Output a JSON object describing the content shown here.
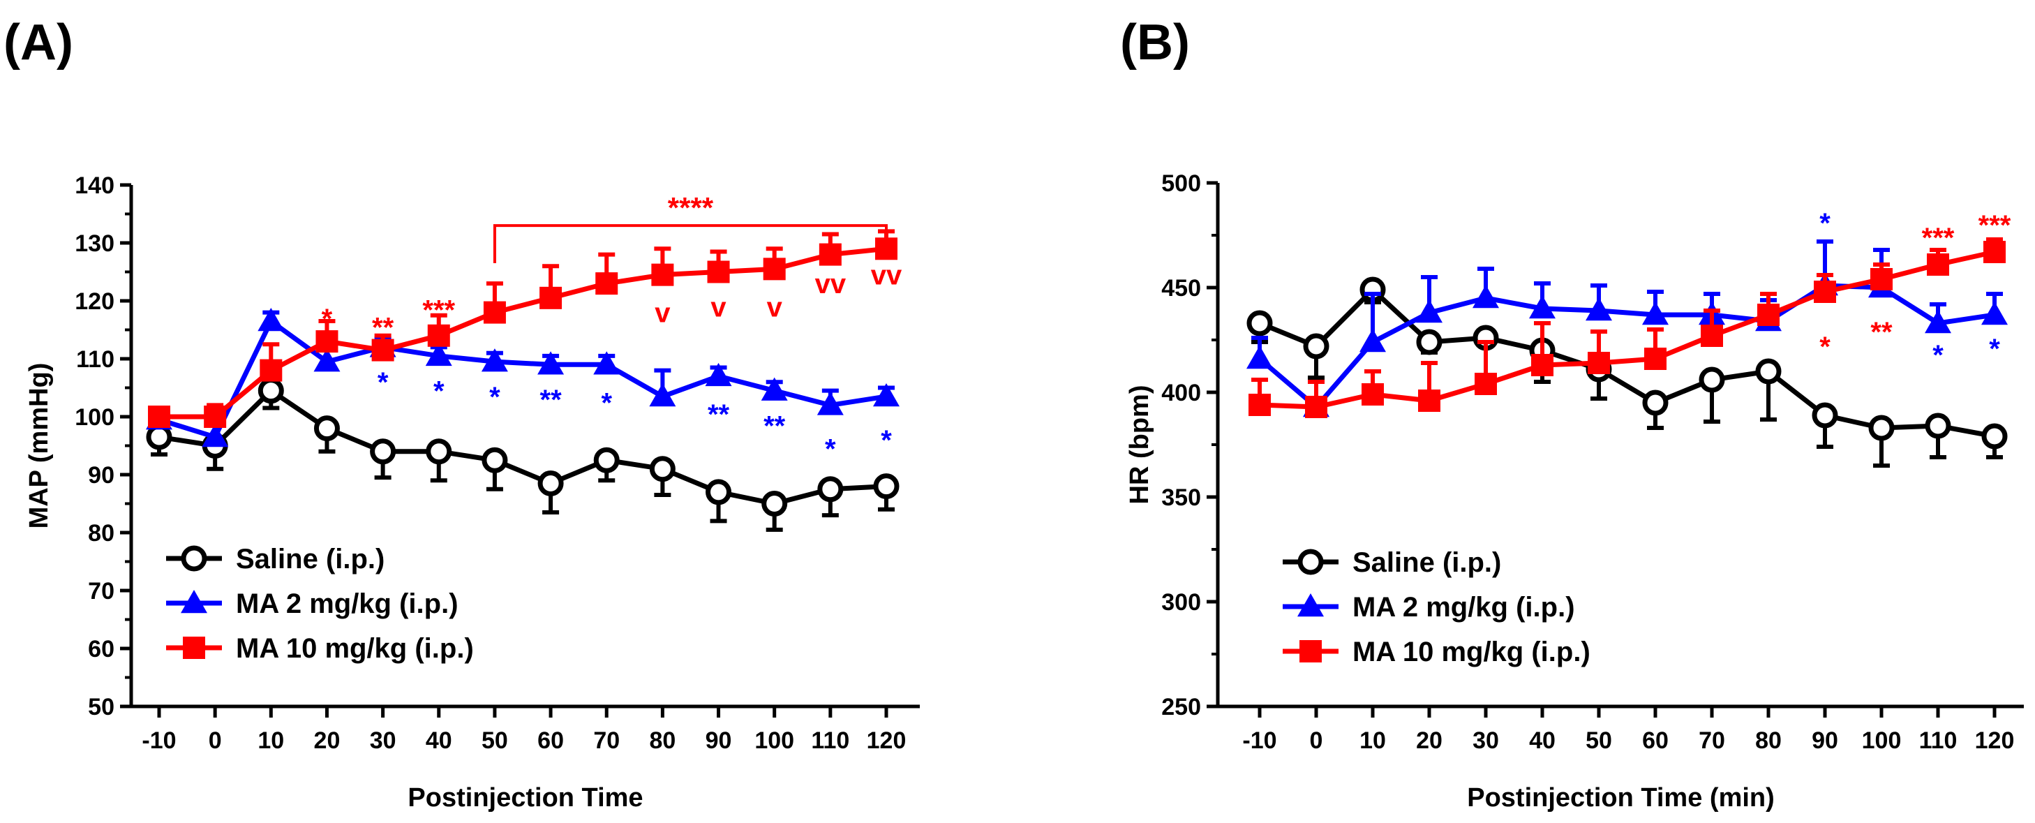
{
  "colors": {
    "saline": "#000000",
    "ma2": "#0000ff",
    "ma10": "#ff0000"
  },
  "chart_data": [
    {
      "type": "line",
      "panel_label": "(A)",
      "xlabel": "Postinjection Time",
      "ylabel": "MAP (mmHg)",
      "x": [
        -10,
        0,
        10,
        20,
        30,
        40,
        50,
        60,
        70,
        80,
        90,
        100,
        110,
        120
      ],
      "x_tick_labels": [
        "-10",
        "0",
        "10",
        "20",
        "30",
        "40",
        "50",
        "60",
        "70",
        "80",
        "90",
        "100",
        "110",
        "120"
      ],
      "ylim": [
        50,
        140
      ],
      "y_ticks": [
        50,
        60,
        70,
        80,
        90,
        100,
        110,
        120,
        130,
        140
      ],
      "y_tick_labels": [
        "50",
        "60",
        "70",
        "80",
        "90",
        "100",
        "110",
        "120",
        "130",
        "140"
      ],
      "legend_position": "bottom-left",
      "series": [
        {
          "key": "saline",
          "name": "Saline (i.p.)",
          "marker": "open-circle",
          "values": [
            96.5,
            95,
            104.5,
            98,
            94,
            94,
            92.5,
            88.5,
            92.5,
            91,
            87,
            85,
            87.5,
            88
          ],
          "errors": [
            3,
            4,
            3,
            4,
            4.5,
            5,
            5,
            5,
            3.5,
            4.5,
            5,
            4.5,
            4.5,
            4
          ]
        },
        {
          "key": "ma2",
          "name": "MA 2 mg/kg (i.p.)",
          "marker": "filled-triangle",
          "values": [
            99.5,
            96.5,
            116.5,
            109.5,
            112,
            110.5,
            109.5,
            109,
            109,
            103.5,
            107,
            104.5,
            102,
            103.5
          ],
          "errors": [
            1.5,
            2,
            1.5,
            2.5,
            1.5,
            1.5,
            1.5,
            1.5,
            1.5,
            4.5,
            1.5,
            1.5,
            2.5,
            1.5
          ]
        },
        {
          "key": "ma10",
          "name": "MA 10 mg/kg (i.p.)",
          "marker": "filled-square",
          "values": [
            100,
            100,
            108,
            113,
            111.5,
            114,
            118,
            120.5,
            123,
            124.5,
            125,
            125.5,
            128,
            129
          ],
          "errors": [
            1.5,
            2,
            4.5,
            3.5,
            2.5,
            3.5,
            5,
            5.5,
            5,
            4.5,
            3.5,
            3.5,
            3.5,
            3
          ]
        }
      ],
      "annotations": [
        {
          "text": "*",
          "x": 20,
          "y": 117,
          "series": "ma10"
        },
        {
          "text": "**",
          "x": 30,
          "y": 115.5,
          "series": "ma10"
        },
        {
          "text": "***",
          "x": 40,
          "y": 118.5,
          "series": "ma10"
        },
        {
          "text": "*",
          "x": 30,
          "y": 106,
          "series": "ma2"
        },
        {
          "text": "*",
          "x": 40,
          "y": 104.5,
          "series": "ma2"
        },
        {
          "text": "*",
          "x": 50,
          "y": 103.5,
          "series": "ma2"
        },
        {
          "text": "**",
          "x": 60,
          "y": 103,
          "series": "ma2"
        },
        {
          "text": "*",
          "x": 70,
          "y": 102.5,
          "series": "ma2"
        },
        {
          "text": "**",
          "x": 90,
          "y": 100.5,
          "series": "ma2"
        },
        {
          "text": "**",
          "x": 100,
          "y": 98.5,
          "series": "ma2"
        },
        {
          "text": "*",
          "x": 110,
          "y": 94.5,
          "series": "ma2"
        },
        {
          "text": "*",
          "x": 120,
          "y": 96,
          "series": "ma2"
        },
        {
          "text": "v",
          "x": 80,
          "y": 118,
          "series": "ma10"
        },
        {
          "text": "v",
          "x": 90,
          "y": 119,
          "series": "ma10"
        },
        {
          "text": "v",
          "x": 100,
          "y": 119,
          "series": "ma10"
        },
        {
          "text": "vv",
          "x": 110,
          "y": 123,
          "series": "ma10"
        },
        {
          "text": "vv",
          "x": 120,
          "y": 124.5,
          "series": "ma10"
        }
      ],
      "bracket": {
        "text": "****",
        "x_from": 50,
        "x_to": 120,
        "y": 133,
        "label_y": 136,
        "series": "ma10"
      }
    },
    {
      "type": "line",
      "panel_label": "(B)",
      "xlabel": "Postinjection Time (min)",
      "ylabel": "HR (bpm)",
      "x": [
        -10,
        0,
        10,
        20,
        30,
        40,
        50,
        60,
        70,
        80,
        90,
        100,
        110,
        120
      ],
      "x_tick_labels": [
        "-10",
        "0",
        "10",
        "20",
        "30",
        "40",
        "50",
        "60",
        "70",
        "80",
        "90",
        "100",
        "110",
        "120"
      ],
      "ylim": [
        250,
        500
      ],
      "y_ticks": [
        250,
        300,
        350,
        400,
        450,
        500
      ],
      "y_tick_labels": [
        "250",
        "300",
        "350",
        "400",
        "450",
        "500"
      ],
      "legend_position": "bottom-left",
      "series": [
        {
          "key": "saline",
          "name": "Saline (i.p.)",
          "marker": "open-circle",
          "values": [
            433,
            422,
            449,
            424,
            426,
            420,
            411,
            395,
            406,
            410,
            389,
            383,
            384,
            379
          ],
          "errors": [
            9,
            15,
            6,
            5,
            18,
            15,
            14,
            12,
            20,
            23,
            15,
            18,
            15,
            10
          ]
        },
        {
          "key": "ma2",
          "name": "MA 2 mg/kg (i.p.)",
          "marker": "filled-triangle",
          "values": [
            416,
            393,
            424,
            438,
            445,
            440,
            439,
            437,
            437,
            434,
            451,
            450,
            433,
            437
          ],
          "errors": [
            10,
            12,
            23,
            17,
            14,
            12,
            12,
            11,
            10,
            10,
            21,
            18,
            9,
            10
          ]
        },
        {
          "key": "ma10",
          "name": "MA 10 mg/kg (i.p.)",
          "marker": "filled-square",
          "values": [
            394,
            393,
            399,
            396,
            404,
            413,
            414,
            416,
            427,
            437,
            448,
            454,
            461,
            467
          ],
          "errors": [
            12,
            12,
            11,
            18,
            20,
            20,
            15,
            14,
            12,
            10,
            8,
            7,
            7,
            6
          ]
        }
      ],
      "annotations": [
        {
          "text": "*",
          "x": 90,
          "y": 481,
          "series": "ma2"
        },
        {
          "text": "*",
          "x": 90,
          "y": 422,
          "series": "ma10"
        },
        {
          "text": "**",
          "x": 100,
          "y": 429,
          "series": "ma10"
        },
        {
          "text": "***",
          "x": 110,
          "y": 474,
          "series": "ma10"
        },
        {
          "text": "***",
          "x": 120,
          "y": 480,
          "series": "ma10"
        },
        {
          "text": "*",
          "x": 110,
          "y": 418,
          "series": "ma2"
        },
        {
          "text": "*",
          "x": 120,
          "y": 421,
          "series": "ma2"
        }
      ]
    }
  ]
}
